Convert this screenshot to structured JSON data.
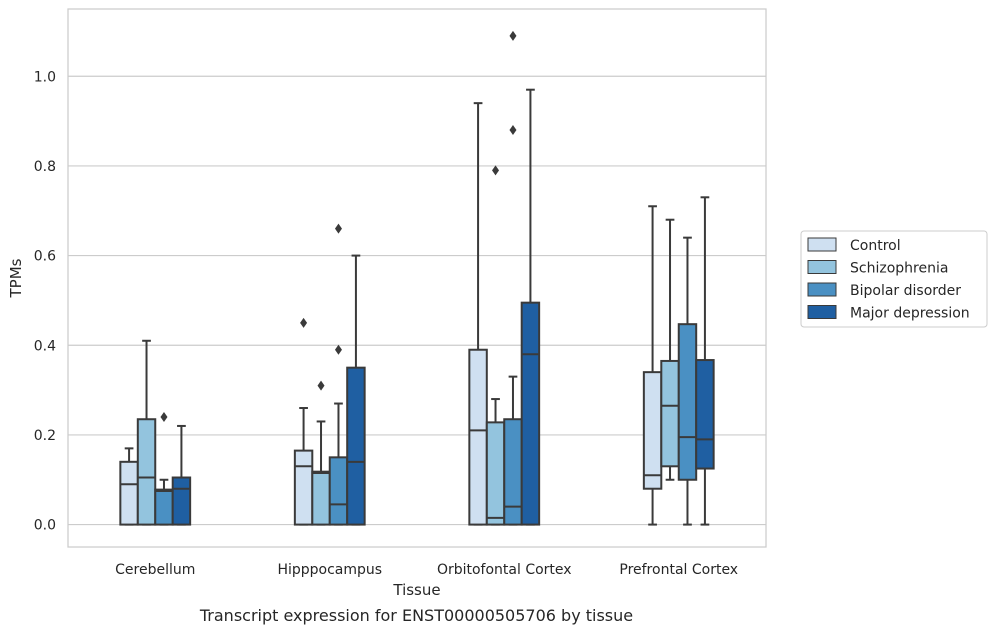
{
  "caption": "Transcript expression for ENST00000505706 by tissue",
  "chart_data": {
    "type": "box",
    "xlabel": "Tissue",
    "ylabel": "TPMs",
    "categories": [
      "Cerebellum",
      "Hipppocampus",
      "Orbitofontal Cortex",
      "Prefrontal Cortex"
    ],
    "ylim": [
      -0.05,
      1.15
    ],
    "yticks": [
      "0.0",
      "0.2",
      "0.4",
      "0.6",
      "0.8",
      "1.0"
    ],
    "ytick_values": [
      0.0,
      0.2,
      0.4,
      0.6,
      0.8,
      1.0
    ],
    "grid": "horizontal",
    "legend_position": "right",
    "series": [
      {
        "name": "Control",
        "color": "#cfe0f1",
        "boxes": [
          {
            "min": 0.0,
            "q1": 0.0,
            "median": 0.09,
            "q3": 0.14,
            "max": 0.17,
            "outliers": []
          },
          {
            "min": 0.0,
            "q1": 0.0,
            "median": 0.13,
            "q3": 0.165,
            "max": 0.26,
            "outliers": [
              0.45
            ]
          },
          {
            "min": 0.0,
            "q1": 0.0,
            "median": 0.21,
            "q3": 0.39,
            "max": 0.94,
            "outliers": []
          },
          {
            "min": 0.0,
            "q1": 0.08,
            "median": 0.11,
            "q3": 0.34,
            "max": 0.71,
            "outliers": []
          }
        ]
      },
      {
        "name": "Schizophrenia",
        "color": "#93c4de",
        "boxes": [
          {
            "min": 0.0,
            "q1": 0.0,
            "median": 0.105,
            "q3": 0.235,
            "max": 0.41,
            "outliers": []
          },
          {
            "min": 0.0,
            "q1": 0.0,
            "median": 0.115,
            "q3": 0.118,
            "max": 0.23,
            "outliers": [
              0.31
            ]
          },
          {
            "min": 0.0,
            "q1": 0.0,
            "median": 0.015,
            "q3": 0.228,
            "max": 0.28,
            "outliers": [
              0.79
            ]
          },
          {
            "min": 0.1,
            "q1": 0.13,
            "median": 0.265,
            "q3": 0.365,
            "max": 0.68,
            "outliers": []
          }
        ]
      },
      {
        "name": "Bipolar disorder",
        "color": "#4a90c3",
        "boxes": [
          {
            "min": 0.0,
            "q1": 0.0,
            "median": 0.075,
            "q3": 0.078,
            "max": 0.1,
            "outliers": [
              0.24
            ]
          },
          {
            "min": 0.0,
            "q1": 0.0,
            "median": 0.045,
            "q3": 0.15,
            "max": 0.27,
            "outliers": [
              0.39,
              0.66
            ]
          },
          {
            "min": 0.0,
            "q1": 0.0,
            "median": 0.04,
            "q3": 0.235,
            "max": 0.33,
            "outliers": [
              0.88,
              1.09
            ]
          },
          {
            "min": 0.0,
            "q1": 0.1,
            "median": 0.195,
            "q3": 0.447,
            "max": 0.64,
            "outliers": []
          }
        ]
      },
      {
        "name": "Major depression",
        "color": "#1f5fa2",
        "boxes": [
          {
            "min": 0.0,
            "q1": 0.0,
            "median": 0.08,
            "q3": 0.105,
            "max": 0.22,
            "outliers": []
          },
          {
            "min": 0.0,
            "q1": 0.0,
            "median": 0.14,
            "q3": 0.35,
            "max": 0.6,
            "outliers": []
          },
          {
            "min": 0.0,
            "q1": 0.0,
            "median": 0.38,
            "q3": 0.495,
            "max": 0.97,
            "outliers": []
          },
          {
            "min": 0.0,
            "q1": 0.125,
            "median": 0.19,
            "q3": 0.367,
            "max": 0.73,
            "outliers": []
          }
        ]
      }
    ]
  }
}
